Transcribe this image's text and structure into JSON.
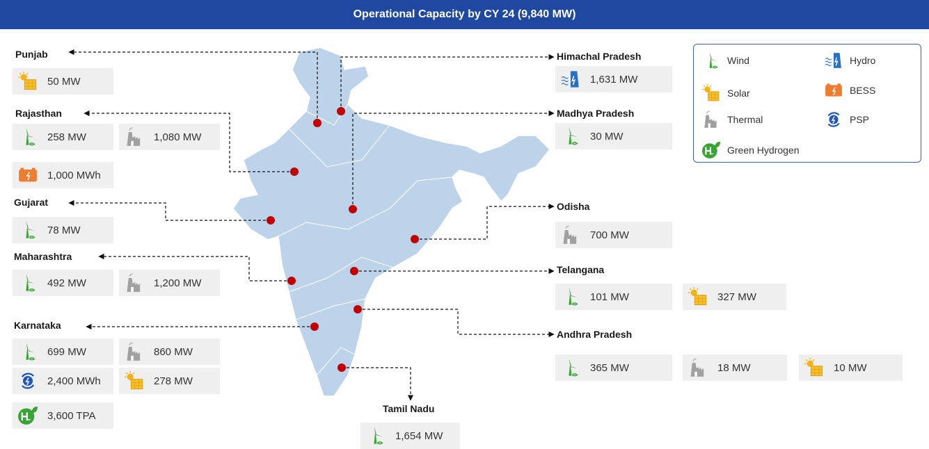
{
  "title": "Operational Capacity by CY 24 (9,840 MW)",
  "legend": [
    "Wind",
    "Hydro",
    "Solar",
    "BESS",
    "Thermal",
    "PSP",
    "Green Hydrogen"
  ],
  "states": [
    {
      "name": "Punjab",
      "values": [
        "50 MW"
      ]
    },
    {
      "name": "Rajasthan",
      "values": [
        "258 MW",
        "1,080 MW",
        "1,000 MWh"
      ]
    },
    {
      "name": "Gujarat",
      "values": [
        "78 MW"
      ]
    },
    {
      "name": "Maharashtra",
      "values": [
        "492 MW",
        "1,200 MW"
      ]
    },
    {
      "name": "Karnataka",
      "values": [
        "699 MW",
        "860 MW",
        "2,400 MWh",
        "278 MW",
        "3,600 TPA"
      ]
    },
    {
      "name": "Himachal Pradesh",
      "values": [
        "1,631 MW"
      ]
    },
    {
      "name": "Madhya Pradesh",
      "values": [
        "30 MW"
      ]
    },
    {
      "name": "Odisha",
      "values": [
        "700 MW"
      ]
    },
    {
      "name": "Telangana",
      "values": [
        "101 MW",
        "327 MW"
      ]
    },
    {
      "name": "Andhra Pradesh",
      "values": [
        "365 MW",
        "18 MW",
        "10 MW"
      ]
    },
    {
      "name": "Tamil Nadu",
      "values": [
        "1,654 MW"
      ]
    }
  ]
}
